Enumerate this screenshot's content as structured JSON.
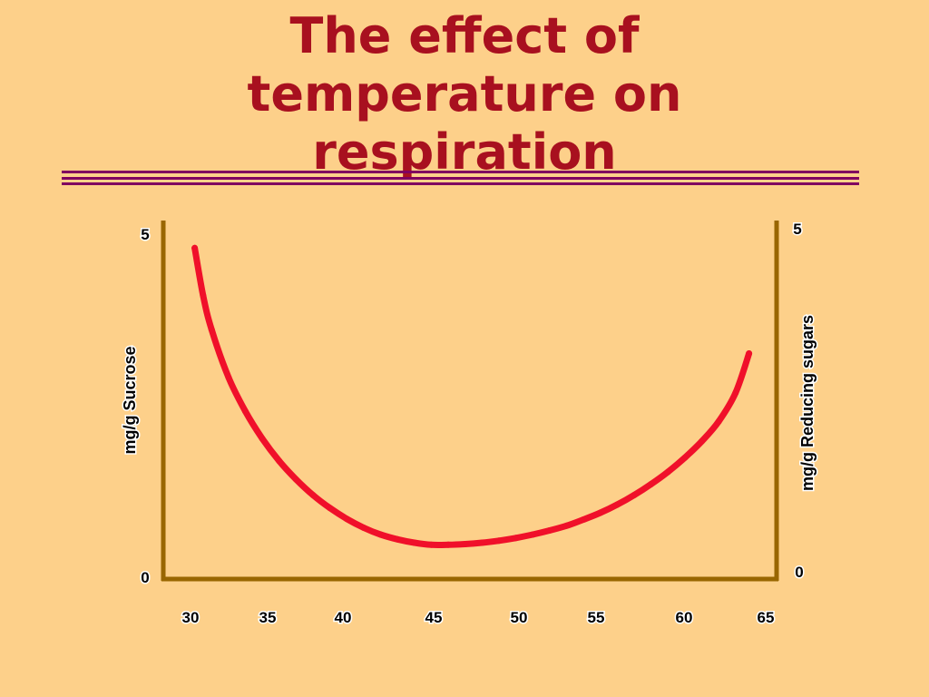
{
  "slide": {
    "title_lines": [
      "The effect of",
      "temperature on",
      "respiration"
    ],
    "colors": {
      "background": "#fdd08a",
      "title": "#a8101f",
      "rule": "#800060",
      "axis": "#996600",
      "curve": "#f0102a",
      "label_shadow": "#ffffff"
    }
  },
  "chart_data": {
    "type": "line",
    "title": "The effect of temperature on respiration",
    "xlabel": "",
    "ylabel": "mg/g Sucrose",
    "y2label": "mg/g Reducing sugars",
    "x_ticks": [
      "30",
      "35",
      "40",
      "45",
      "50",
      "55",
      "60",
      "65"
    ],
    "y_ticks": [
      "0",
      "5"
    ],
    "y2_ticks": [
      "0",
      "5"
    ],
    "xlim": [
      30,
      65
    ],
    "ylim": [
      0,
      5
    ],
    "y2lim": [
      0,
      5
    ],
    "grid": false,
    "series": [
      {
        "x": [
          31,
          31.5,
          32,
          33,
          34,
          35,
          36,
          37,
          38,
          39,
          40,
          41,
          42,
          43,
          44,
          45,
          46,
          47,
          48,
          49,
          50,
          51,
          52,
          53,
          54,
          55,
          56,
          57,
          58,
          59,
          60,
          61,
          62,
          63,
          63.8
        ],
        "y": [
          4.85,
          4.15,
          3.65,
          2.95,
          2.45,
          2.05,
          1.72,
          1.45,
          1.22,
          1.03,
          0.87,
          0.74,
          0.64,
          0.57,
          0.52,
          0.49,
          0.49,
          0.5,
          0.52,
          0.55,
          0.59,
          0.64,
          0.7,
          0.77,
          0.86,
          0.96,
          1.08,
          1.22,
          1.38,
          1.56,
          1.77,
          2.01,
          2.3,
          2.72,
          3.3
        ]
      }
    ]
  }
}
